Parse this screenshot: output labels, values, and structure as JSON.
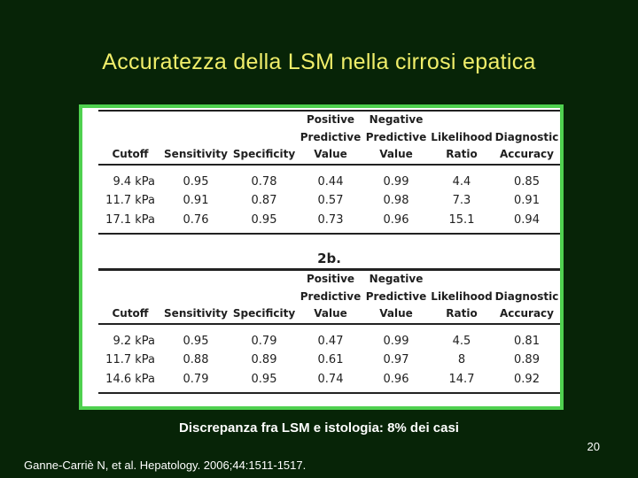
{
  "slide": {
    "title": "Accuratezza della LSM nella cirrosi epatica",
    "caption": "Discrepanza fra LSM e istologia: 8% dei casi",
    "page_number": "20",
    "citation": "Ganne-Carriè N, et al. Hepatology. 2006;44:1511-1517."
  },
  "colors": {
    "background": "#072407",
    "title": "#f0ee6a",
    "frame_border": "#4fd14f"
  },
  "table_a": {
    "header_row1": [
      "",
      "",
      "",
      "Positive",
      "Negative",
      "",
      ""
    ],
    "header_row2": [
      "",
      "",
      "",
      "Predictive",
      "Predictive",
      "Likelihood",
      "Diagnostic"
    ],
    "header_row3": [
      "Cutoff",
      "Sensitivity",
      "Specificity",
      "Value",
      "Value",
      "Ratio",
      "Accuracy"
    ],
    "rows": [
      [
        "9.4 kPa",
        "0.95",
        "0.78",
        "0.44",
        "0.99",
        "4.4",
        "0.85"
      ],
      [
        "11.7 kPa",
        "0.91",
        "0.87",
        "0.57",
        "0.98",
        "7.3",
        "0.91"
      ],
      [
        "17.1 kPa",
        "0.76",
        "0.95",
        "0.73",
        "0.96",
        "15.1",
        "0.94"
      ]
    ]
  },
  "section_b_label": "2b.",
  "table_b": {
    "header_row1": [
      "",
      "",
      "",
      "Positive",
      "Negative",
      "",
      ""
    ],
    "header_row2": [
      "",
      "",
      "",
      "Predictive",
      "Predictive",
      "Likelihood",
      "Diagnostic"
    ],
    "header_row3": [
      "Cutoff",
      "Sensitivity",
      "Specificity",
      "Value",
      "Value",
      "Ratio",
      "Accuracy"
    ],
    "rows": [
      [
        "9.2 kPa",
        "0.95",
        "0.79",
        "0.47",
        "0.99",
        "4.5",
        "0.81"
      ],
      [
        "11.7 kPa",
        "0.88",
        "0.89",
        "0.61",
        "0.97",
        "8",
        "0.89"
      ],
      [
        "14.6 kPa",
        "0.79",
        "0.95",
        "0.74",
        "0.96",
        "14.7",
        "0.92"
      ]
    ]
  }
}
